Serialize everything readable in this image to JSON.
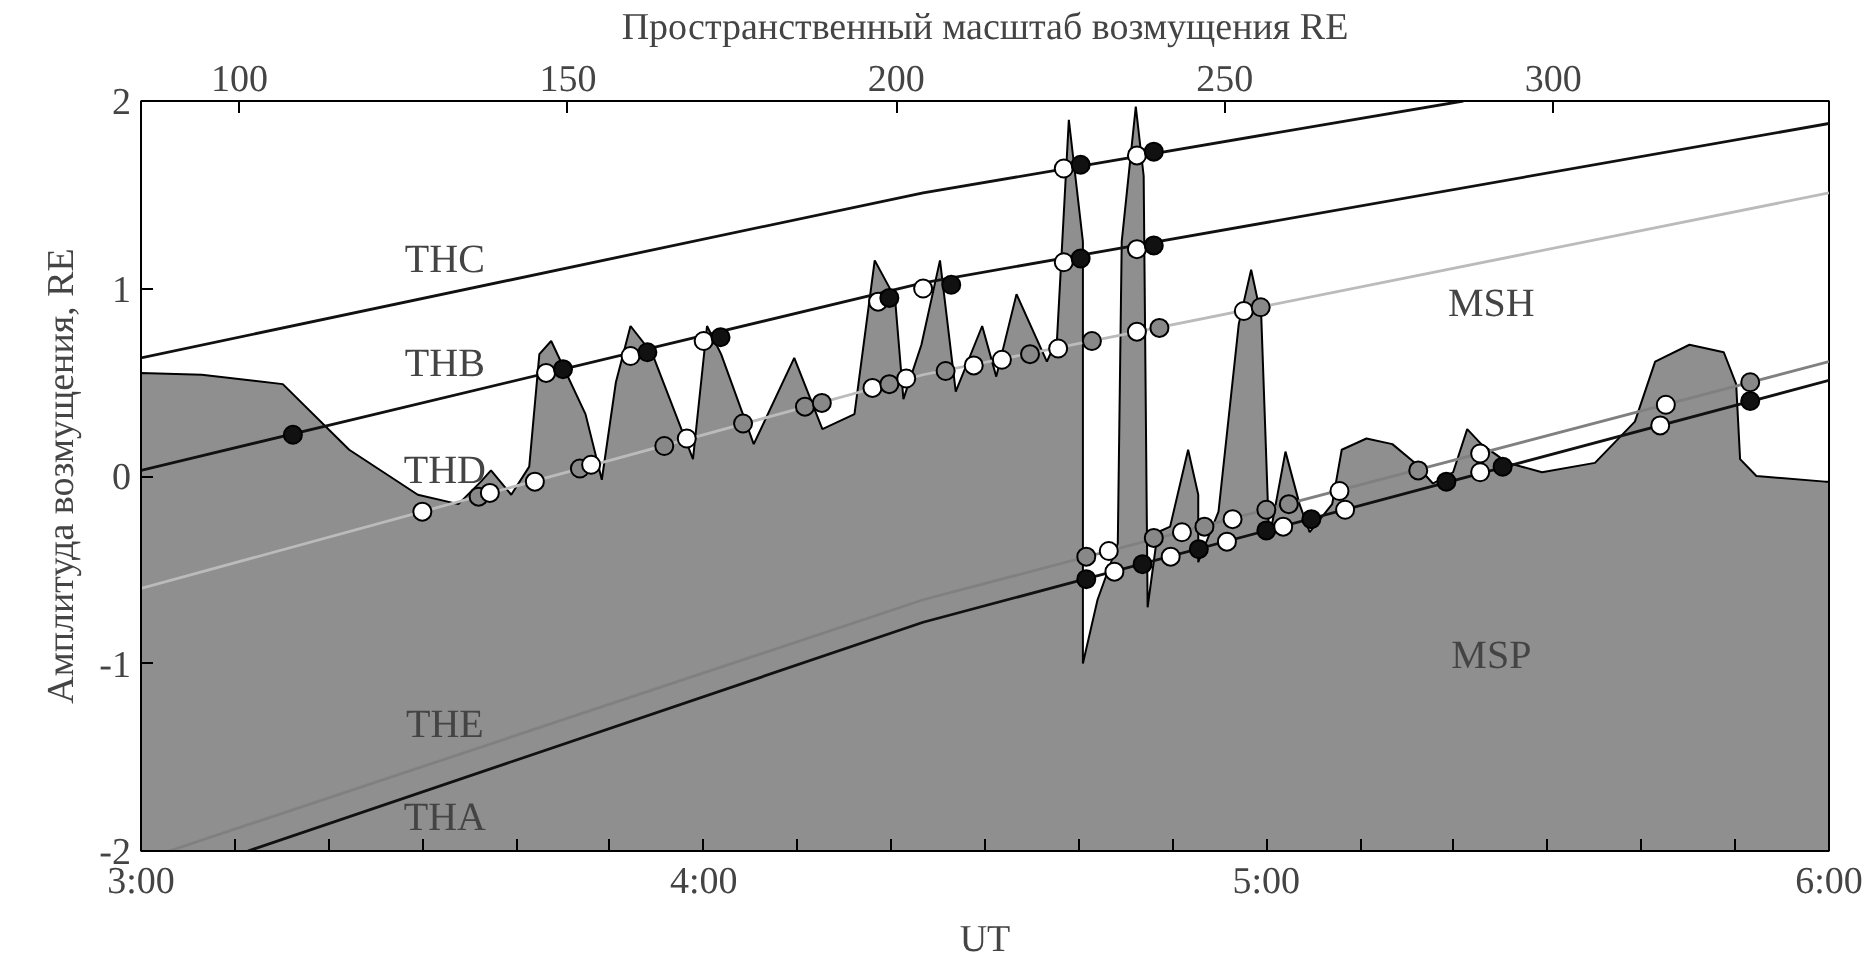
{
  "chart_data": {
    "type": "line",
    "xlabel": "UT",
    "ylabel": "Амплитуда возмущения, RE",
    "x2label": "Пространственный масштаб возмущения RE",
    "xlim": [
      3,
      6
    ],
    "xticks": [
      {
        "value": 3,
        "label": "3:00"
      },
      {
        "value": 3.1667,
        "label": null
      },
      {
        "value": 3.3333,
        "label": null
      },
      {
        "value": 3.5,
        "label": null
      },
      {
        "value": 3.6667,
        "label": null
      },
      {
        "value": 3.8333,
        "label": null
      },
      {
        "value": 4,
        "label": "4:00"
      },
      {
        "value": 4.1667,
        "label": null
      },
      {
        "value": 4.3333,
        "label": null
      },
      {
        "value": 4.5,
        "label": null
      },
      {
        "value": 4.6667,
        "label": null
      },
      {
        "value": 4.8333,
        "label": null
      },
      {
        "value": 5,
        "label": "5:00"
      },
      {
        "value": 5.1667,
        "label": null
      },
      {
        "value": 5.3333,
        "label": null
      },
      {
        "value": 5.5,
        "label": null
      },
      {
        "value": 5.6667,
        "label": null
      },
      {
        "value": 5.8333,
        "label": null
      },
      {
        "value": 6,
        "label": "6:00"
      }
    ],
    "ylim": [
      -2,
      2
    ],
    "yticks": [
      -2,
      -1,
      0,
      1,
      2
    ],
    "x2lim": [
      85,
      342
    ],
    "x2ticks": [
      100,
      150,
      200,
      250,
      300
    ],
    "annotations": [
      "MSH",
      "MSP"
    ],
    "series": [
      {
        "type": "area",
        "color": "#8f8f8f",
        "x": [
          3.0,
          3.0,
          3.108,
          3.252,
          3.37,
          3.492,
          3.564,
          3.604,
          3.622,
          3.658,
          3.69,
          3.708,
          3.729,
          3.79,
          3.819,
          3.844,
          3.87,
          3.909,
          3.981,
          4.006,
          4.031,
          4.089,
          4.161,
          4.211,
          4.268,
          4.304,
          4.34,
          4.355,
          4.387,
          4.42,
          4.448,
          4.495,
          4.52,
          4.556,
          4.592,
          4.61,
          4.628,
          4.649,
          4.674,
          4.674,
          4.7,
          4.736,
          4.743,
          4.768,
          4.782,
          4.789,
          4.807,
          4.829,
          4.861,
          4.879,
          4.879,
          4.915,
          4.951,
          4.973,
          4.991,
          5.005,
          5.034,
          5.059,
          5.077,
          5.117,
          5.134,
          5.178,
          5.224,
          5.26,
          5.296,
          5.332,
          5.357,
          5.382,
          5.429,
          5.49,
          5.584,
          5.655,
          5.691,
          5.752,
          5.813,
          5.835,
          5.842,
          5.871,
          5.993,
          6.0,
          6.0
        ],
        "values": [
          -2,
          0.55,
          0.54,
          0.49,
          0.14,
          -0.1,
          -0.15,
          -0.03,
          0.03,
          -0.1,
          0.05,
          0.65,
          0.72,
          0.33,
          -0.02,
          0.5,
          0.8,
          0.65,
          0.09,
          0.8,
          0.65,
          0.17,
          0.63,
          0.25,
          0.33,
          1.15,
          0.95,
          0.41,
          0.7,
          1.15,
          0.45,
          0.8,
          0.53,
          0.97,
          0.73,
          0.61,
          0.73,
          1.9,
          1.25,
          -1.0,
          -0.66,
          -0.36,
          1.25,
          1.97,
          1.6,
          -0.7,
          -0.3,
          -0.27,
          0.14,
          -0.1,
          -0.46,
          -0.19,
          0.81,
          1.1,
          0.85,
          -0.34,
          0.13,
          -0.15,
          -0.3,
          -0.15,
          0.14,
          0.2,
          0.17,
          0.08,
          -0.04,
          0.02,
          0.25,
          0.17,
          0.07,
          0.02,
          0.07,
          0.29,
          0.61,
          0.7,
          0.66,
          0.49,
          0.09,
          0.0,
          -0.03,
          -0.03,
          -2
        ]
      },
      {
        "name": "THC",
        "color": "#111111",
        "x": [
          3,
          4.39,
          5.35
        ],
        "values": [
          0.63,
          1.51,
          2.0
        ]
      },
      {
        "name": "THB",
        "color": "#111111",
        "x": [
          3,
          4.39,
          6
        ],
        "values": [
          0.03,
          1.03,
          1.88
        ]
      },
      {
        "name": "THD",
        "color": "#bbbbbb",
        "x": [
          3,
          4.39,
          6
        ],
        "values": [
          -0.6,
          0.54,
          1.51
        ]
      },
      {
        "name": "THE",
        "color": "#808080",
        "x": [
          3.05,
          4.39,
          6
        ],
        "values": [
          -2,
          -0.66,
          0.61
        ]
      },
      {
        "name": "THA",
        "color": "#111111",
        "x": [
          3.19,
          4.39,
          6
        ],
        "values": [
          -2,
          -0.78,
          0.51
        ]
      },
      {
        "type": "scatter",
        "marker": "circle",
        "x": [
          4.64,
          4.67,
          4.77,
          4.8,
          3.27,
          3.72,
          3.75,
          3.87,
          3.9,
          4.0,
          4.03,
          4.31,
          4.33,
          4.39,
          4.44,
          4.64,
          4.67,
          4.77,
          4.8,
          3.5,
          3.6,
          3.62,
          3.7,
          3.78,
          3.8,
          3.93,
          3.97,
          4.07,
          4.18,
          4.21,
          4.3,
          4.33,
          4.36,
          4.43,
          4.48,
          4.53,
          4.58,
          4.63,
          4.69,
          4.77,
          4.81,
          4.96,
          4.99,
          4.68,
          4.72,
          4.8,
          4.85,
          4.89,
          4.94,
          5.0,
          5.04,
          5.13,
          5.27,
          5.38,
          5.71,
          5.86,
          4.68,
          4.73,
          4.78,
          4.83,
          4.88,
          4.93,
          5.0,
          5.03,
          5.08,
          5.14,
          5.32,
          5.38,
          5.42,
          5.7,
          5.86
        ],
        "values": [
          1.64,
          1.66,
          1.71,
          1.73,
          0.22,
          0.55,
          0.57,
          0.64,
          0.66,
          0.72,
          0.74,
          0.93,
          0.95,
          1.0,
          1.02,
          1.14,
          1.16,
          1.21,
          1.23,
          -0.19,
          -0.11,
          -0.09,
          -0.03,
          0.04,
          0.06,
          0.16,
          0.2,
          0.28,
          0.37,
          0.39,
          0.47,
          0.49,
          0.52,
          0.56,
          0.59,
          0.62,
          0.65,
          0.68,
          0.72,
          0.77,
          0.79,
          0.88,
          0.9,
          -0.43,
          -0.4,
          -0.33,
          -0.3,
          -0.27,
          -0.23,
          -0.18,
          -0.15,
          -0.08,
          0.03,
          0.12,
          0.38,
          0.5,
          -0.55,
          -0.51,
          -0.47,
          -0.43,
          -0.39,
          -0.35,
          -0.29,
          -0.27,
          -0.23,
          -0.18,
          -0.03,
          0.02,
          0.05,
          0.27,
          0.4
        ],
        "colors": [
          "#ffffff",
          "#111111",
          "#ffffff",
          "#111111",
          "#111111",
          "#ffffff",
          "#111111",
          "#ffffff",
          "#111111",
          "#ffffff",
          "#111111",
          "#ffffff",
          "#111111",
          "#ffffff",
          "#111111",
          "#ffffff",
          "#111111",
          "#ffffff",
          "#111111",
          "#ffffff",
          "#888888",
          "#ffffff",
          "#ffffff",
          "#888888",
          "#ffffff",
          "#888888",
          "#ffffff",
          "#888888",
          "#888888",
          "#888888",
          "#ffffff",
          "#888888",
          "#ffffff",
          "#888888",
          "#ffffff",
          "#ffffff",
          "#888888",
          "#ffffff",
          "#888888",
          "#ffffff",
          "#888888",
          "#ffffff",
          "#888888",
          "#888888",
          "#ffffff",
          "#888888",
          "#ffffff",
          "#888888",
          "#ffffff",
          "#888888",
          "#888888",
          "#ffffff",
          "#888888",
          "#ffffff",
          "#ffffff",
          "#888888",
          "#111111",
          "#ffffff",
          "#111111",
          "#ffffff",
          "#111111",
          "#ffffff",
          "#111111",
          "#ffffff",
          "#111111",
          "#ffffff",
          "#111111",
          "#ffffff",
          "#111111",
          "#ffffff",
          "#111111"
        ]
      }
    ]
  }
}
